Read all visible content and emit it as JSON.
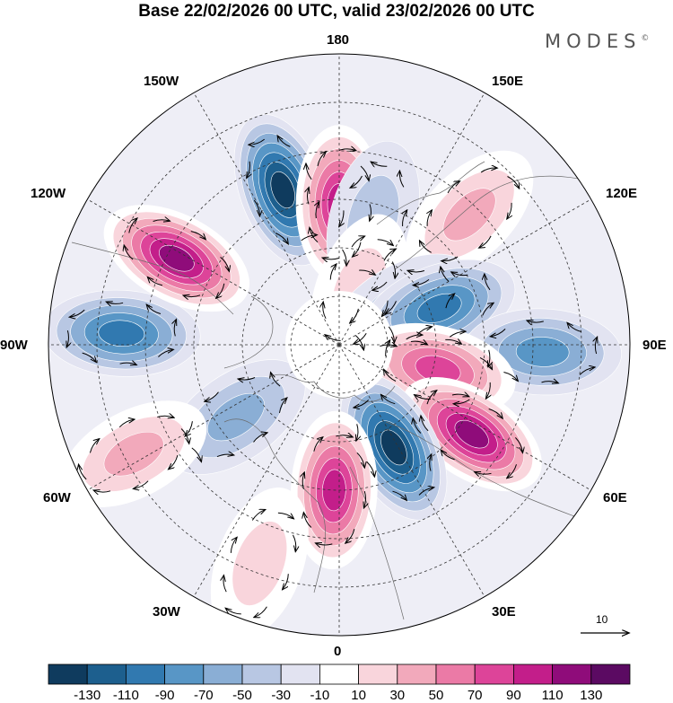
{
  "title": "Base 22/02/2026 00 UTC, valid 23/02/2026 00 UTC",
  "brand": {
    "text": "MODES",
    "mark": "©"
  },
  "longitude_labels": {
    "lon_180": "180",
    "lon_150e": "150E",
    "lon_120e": "120E",
    "lon_90e": "90E",
    "lon_60e": "60E",
    "lon_30e": "30E",
    "lon_0": "0",
    "lon_30w": "30W",
    "lon_60w": "60W",
    "lon_90w": "90W",
    "lon_120w": "120W",
    "lon_150w": "150W"
  },
  "vector_scale": {
    "label": "10"
  },
  "colorbar": {
    "colors": [
      "#0f3b5e",
      "#1d5f8e",
      "#3179b0",
      "#5896c6",
      "#8aaed5",
      "#b8c7e3",
      "#e2e3f1",
      "#ffffff",
      "#f9d5dc",
      "#f2a9bb",
      "#eb7aa6",
      "#dd4499",
      "#c31e8a",
      "#8f0c7a",
      "#5b0a62"
    ],
    "labels": [
      "-130",
      "-110",
      "-90",
      "-70",
      "-50",
      "-30",
      "-10",
      "10",
      "30",
      "50",
      "70",
      "90",
      "110",
      "130"
    ]
  },
  "anomaly_centers": [
    {
      "name": "north-pacific-low",
      "lon": -160,
      "colat": 34,
      "value": -125
    },
    {
      "name": "bering-high",
      "lon": 180,
      "colat": 29,
      "value": 110
    },
    {
      "name": "alaska-weak-low",
      "lon": 165,
      "colat": 27,
      "value": -35
    },
    {
      "name": "west-pacific-high",
      "lon": 135,
      "colat": 38,
      "value": 45
    },
    {
      "name": "east-siberia-high",
      "lon": 160,
      "colat": 12,
      "value": 35
    },
    {
      "name": "east-siberia-low",
      "lon": 120,
      "colat": 15,
      "value": -30
    },
    {
      "name": "siberia-low",
      "lon": 110,
      "colat": 22,
      "value": -80
    },
    {
      "name": "central-asia-low",
      "lon": 88,
      "colat": 42,
      "value": -60
    },
    {
      "name": "west-siberia-high",
      "lon": 76,
      "colat": 21,
      "value": 85
    },
    {
      "name": "ural-high",
      "lon": 56,
      "colat": 33,
      "value": 120
    },
    {
      "name": "europe-low",
      "lon": 28,
      "colat": 24,
      "value": -120
    },
    {
      "name": "north-atlantic-high",
      "lon": -2,
      "colat": 30,
      "value": 105
    },
    {
      "name": "atlantic-south-high",
      "lon": -20,
      "colat": 48,
      "value": 30
    },
    {
      "name": "greenland-low",
      "lon": -55,
      "colat": 26,
      "value": -55
    },
    {
      "name": "sw-atlantic-high",
      "lon": -62,
      "colat": 48,
      "value": 40
    },
    {
      "name": "north-america-low",
      "lon": -93,
      "colat": 45,
      "value": -80
    },
    {
      "name": "canada-high",
      "lon": -118,
      "colat": 38,
      "value": 125
    },
    {
      "name": "arctic-neutral",
      "lon": 0,
      "colat": 0,
      "value": 0
    }
  ]
}
